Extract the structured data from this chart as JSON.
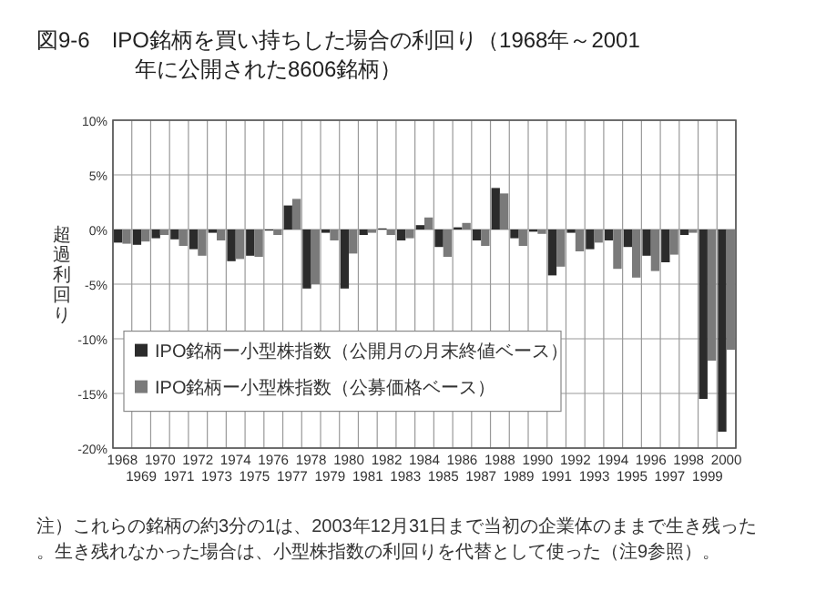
{
  "chart_data": {
    "type": "bar",
    "title": "図9-6　IPO銘柄を買い持ちした場合の利回り（1968年～2001年に公開された8606銘柄）",
    "ylabel": "超過利回り",
    "categories": [
      "1968",
      "1969",
      "1970",
      "1971",
      "1972",
      "1973",
      "1974",
      "1975",
      "1976",
      "1977",
      "1978",
      "1979",
      "1980",
      "1981",
      "1982",
      "1983",
      "1984",
      "1985",
      "1986",
      "1987",
      "1988",
      "1989",
      "1990",
      "1991",
      "1992",
      "1993",
      "1994",
      "1995",
      "1996",
      "1997",
      "1998",
      "1999",
      "2000"
    ],
    "series": [
      {
        "name": "IPO銘柄ー小型株指数（公開月の月末終値ベース）",
        "color": "#2b2b2b",
        "values": [
          -1.2,
          -1.4,
          -0.8,
          -0.9,
          -1.8,
          -0.3,
          -2.9,
          -2.4,
          -0.1,
          2.2,
          -5.4,
          -0.3,
          -5.4,
          -0.5,
          0.1,
          -1.0,
          0.4,
          -1.6,
          0.2,
          -1.0,
          3.8,
          -0.8,
          -0.2,
          -4.2,
          -0.3,
          -1.8,
          -1.0,
          -1.6,
          -2.4,
          -3.0,
          -0.5,
          -15.5,
          -18.5
        ]
      },
      {
        "name": "IPO銘柄ー小型株指数（公募価格ベース）",
        "color": "#7a7a7a",
        "values": [
          -1.3,
          -1.1,
          -0.5,
          -1.5,
          -2.4,
          -1.0,
          -2.7,
          -2.5,
          -0.5,
          2.8,
          -5.0,
          -1.0,
          -2.2,
          -0.3,
          -0.5,
          -0.8,
          1.1,
          -2.5,
          0.6,
          -1.5,
          3.3,
          -1.5,
          -0.4,
          -3.4,
          -2.0,
          -1.2,
          -3.6,
          -4.4,
          -3.8,
          -2.3,
          -0.3,
          -12.0,
          -11.0
        ]
      }
    ],
    "ylim": [
      -20,
      10
    ],
    "yticks": [
      {
        "value": 10,
        "label": "10%"
      },
      {
        "value": 5,
        "label": "5%"
      },
      {
        "value": 0,
        "label": "0%"
      },
      {
        "value": -5,
        "label": "-5%"
      },
      {
        "value": -10,
        "label": "-10%"
      },
      {
        "value": -15,
        "label": "-15%"
      },
      {
        "value": -20,
        "label": "-20%"
      }
    ],
    "grid": true,
    "legend": "bottom left",
    "annotations": [
      "注）これらの銘柄の約3分の1は、2003年12月31日まで当初の企業体のままで生き残った。生き残れなかった場合は、小型株指数の利回りを代替として使った（注9参照）。"
    ]
  }
}
